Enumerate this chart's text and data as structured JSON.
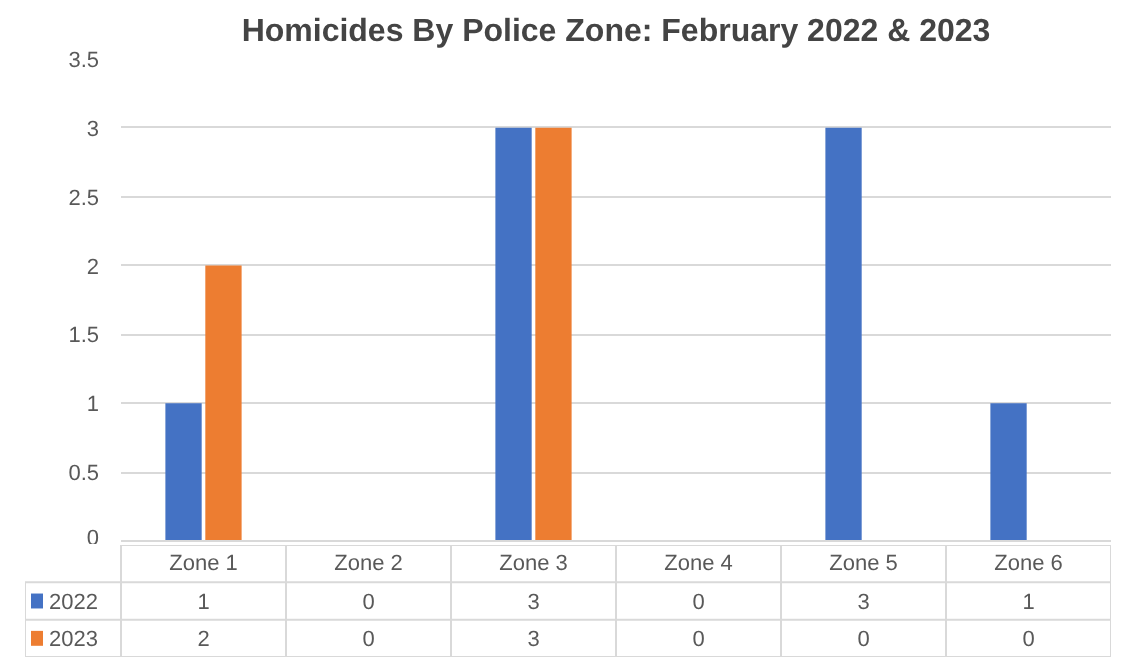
{
  "chart_data": {
    "type": "bar",
    "title": "Homicides By Police Zone: February 2022 & 2023",
    "categories": [
      "Zone 1",
      "Zone 2",
      "Zone 3",
      "Zone 4",
      "Zone 5",
      "Zone 6"
    ],
    "series": [
      {
        "name": "2022",
        "color": "#4472c4",
        "values": [
          1,
          0,
          3,
          0,
          3,
          1
        ]
      },
      {
        "name": "2023",
        "color": "#ed7d31",
        "values": [
          2,
          0,
          3,
          0,
          0,
          0
        ]
      }
    ],
    "ylim": [
      0,
      3.5
    ],
    "yticks": [
      0,
      0.5,
      1,
      1.5,
      2,
      2.5,
      3,
      3.5
    ],
    "grid": "y",
    "legend": "bottom",
    "data_labels": true
  }
}
